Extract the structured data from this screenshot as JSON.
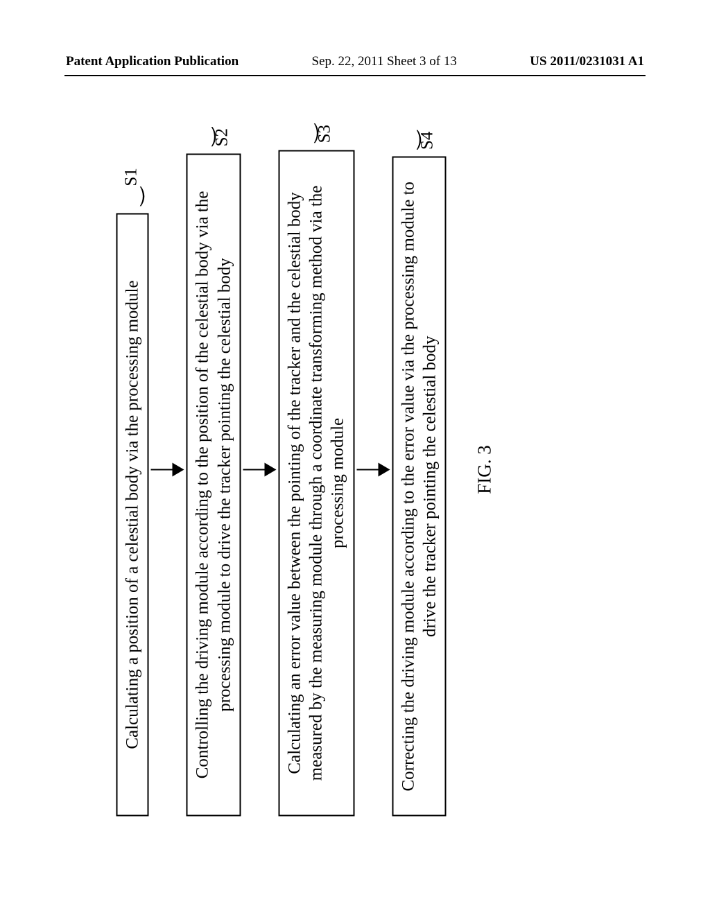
{
  "header": {
    "left": "Patent Application Publication",
    "center": "Sep. 22, 2011  Sheet 3 of 13",
    "right": "US 2011/0231031 A1"
  },
  "flowchart": {
    "steps": [
      {
        "text": "Calculating a position of a celestial body via the processing module",
        "label": "S1"
      },
      {
        "text": "Controlling the driving module according to the position of the celestial body via the processing module to drive the tracker pointing the celestial body",
        "label": "S2"
      },
      {
        "text": "Calculating an error value between the pointing of the tracker and the celestial body measured by the measuring module through a coordinate transforming method via the processing module",
        "label": "S3"
      },
      {
        "text": "Correcting the driving module according to the error value via the processing module to drive the tracker pointing the celestial body",
        "label": "S4"
      }
    ]
  },
  "caption": "FIG. 3"
}
